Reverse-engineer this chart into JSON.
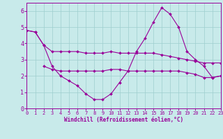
{
  "xlabel": "Windchill (Refroidissement éolien,°C)",
  "bg_color": "#c8eaea",
  "line_color": "#990099",
  "grid_color": "#9ecece",
  "xlim": [
    0,
    23
  ],
  "ylim": [
    0,
    6.5
  ],
  "yticks": [
    0,
    1,
    2,
    3,
    4,
    5,
    6
  ],
  "xticks": [
    0,
    1,
    2,
    3,
    4,
    5,
    6,
    7,
    8,
    9,
    10,
    11,
    12,
    13,
    14,
    15,
    16,
    17,
    18,
    19,
    20,
    21,
    22,
    23
  ],
  "line1_x": [
    0,
    1,
    2,
    3,
    4,
    5,
    6,
    7,
    8,
    9,
    10,
    11,
    12,
    13,
    14,
    15,
    16,
    17,
    18,
    19,
    20,
    21,
    22,
    23
  ],
  "line1_y": [
    4.8,
    4.7,
    3.9,
    3.5,
    3.5,
    3.5,
    3.5,
    3.4,
    3.4,
    3.4,
    3.5,
    3.4,
    3.4,
    3.4,
    3.4,
    3.4,
    3.3,
    3.2,
    3.1,
    3.0,
    2.9,
    2.8,
    2.8,
    2.8
  ],
  "line2_x": [
    0,
    1,
    2,
    3,
    4,
    5,
    6,
    7,
    8,
    9,
    10,
    11,
    12,
    13,
    14,
    15,
    16,
    17,
    18,
    19,
    20,
    21,
    22,
    23
  ],
  "line2_y": [
    4.8,
    4.7,
    3.9,
    2.6,
    2.0,
    1.7,
    1.4,
    0.9,
    0.55,
    0.55,
    0.9,
    1.6,
    2.3,
    3.5,
    4.3,
    5.3,
    6.2,
    5.8,
    5.0,
    3.5,
    3.0,
    2.6,
    1.9,
    2.0
  ],
  "line3_x": [
    2,
    3,
    4,
    5,
    6,
    7,
    8,
    9,
    10,
    11,
    12,
    13,
    14,
    15,
    16,
    17,
    18,
    19,
    20,
    21,
    22,
    23
  ],
  "line3_y": [
    2.6,
    2.4,
    2.3,
    2.3,
    2.3,
    2.3,
    2.3,
    2.3,
    2.4,
    2.4,
    2.3,
    2.3,
    2.3,
    2.3,
    2.3,
    2.3,
    2.3,
    2.2,
    2.1,
    1.9,
    1.9,
    2.0
  ]
}
